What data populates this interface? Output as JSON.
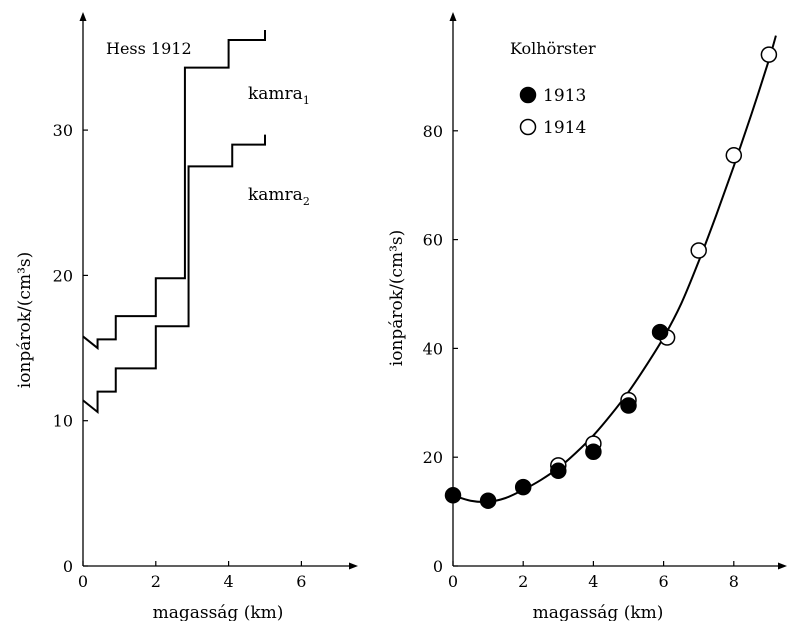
{
  "chart_data": [
    {
      "type": "line",
      "title": "Hess 1912",
      "xlabel": "magasság (km)",
      "ylabel": "ionpárok/(cm³s)",
      "xlim": [
        0,
        7.5
      ],
      "ylim": [
        0,
        38
      ],
      "xticks": [
        "0",
        "2",
        "4",
        "6"
      ],
      "yticks": [
        "0",
        "10",
        "20",
        "30"
      ],
      "series": [
        {
          "name": "kamra₁",
          "label_base": "kamra",
          "label_sub": "1",
          "x": [
            0,
            0.4,
            0.9,
            2.0,
            2.8,
            4.0,
            5.0
          ],
          "y": [
            15.8,
            15.0,
            15.6,
            17.2,
            19.8,
            34.3,
            36.2
          ]
        },
        {
          "name": "kamra₂",
          "label_base": "kamra",
          "label_sub": "2",
          "x": [
            0,
            0.4,
            0.9,
            2.0,
            2.9,
            4.1,
            5.0
          ],
          "y": [
            11.4,
            10.6,
            12.0,
            13.6,
            16.5,
            27.5,
            29.0
          ]
        }
      ]
    },
    {
      "type": "scatter",
      "title": "Kolhörster",
      "xlabel": "magasság (km)",
      "ylabel": "ionpárok/(cm³s)",
      "xlim": [
        0,
        9.2
      ],
      "ylim": [
        0,
        100
      ],
      "xticks": [
        "0",
        "2",
        "4",
        "6",
        "8"
      ],
      "yticks": [
        "0",
        "20",
        "40",
        "60",
        "80"
      ],
      "series": [
        {
          "name": "1913",
          "marker": "filled",
          "x": [
            0,
            1.0,
            2.0,
            3.0,
            4.0,
            5.0,
            5.9
          ],
          "y": [
            13.0,
            12.0,
            14.5,
            17.5,
            21.0,
            29.5,
            43.0
          ]
        },
        {
          "name": "1914",
          "marker": "open",
          "x": [
            3.0,
            4.0,
            5.0,
            6.1,
            7.0,
            8.0,
            9.0
          ],
          "y": [
            18.5,
            22.5,
            30.5,
            42.0,
            58.0,
            75.5,
            94.0
          ]
        }
      ],
      "fit_curve": {
        "x": [
          0,
          0.5,
          1.0,
          1.5,
          2.0,
          2.5,
          3.0,
          3.5,
          4.0,
          4.5,
          5.0,
          5.5,
          6.0,
          6.5,
          7.0,
          7.5,
          8.0,
          8.5,
          9.0,
          9.2
        ],
        "y": [
          13.0,
          12.0,
          11.8,
          12.5,
          14.0,
          15.8,
          18.0,
          20.8,
          24.0,
          27.8,
          32.0,
          36.8,
          42.0,
          48.2,
          56.0,
          64.5,
          73.5,
          83.0,
          93.0,
          97.5
        ]
      }
    }
  ]
}
